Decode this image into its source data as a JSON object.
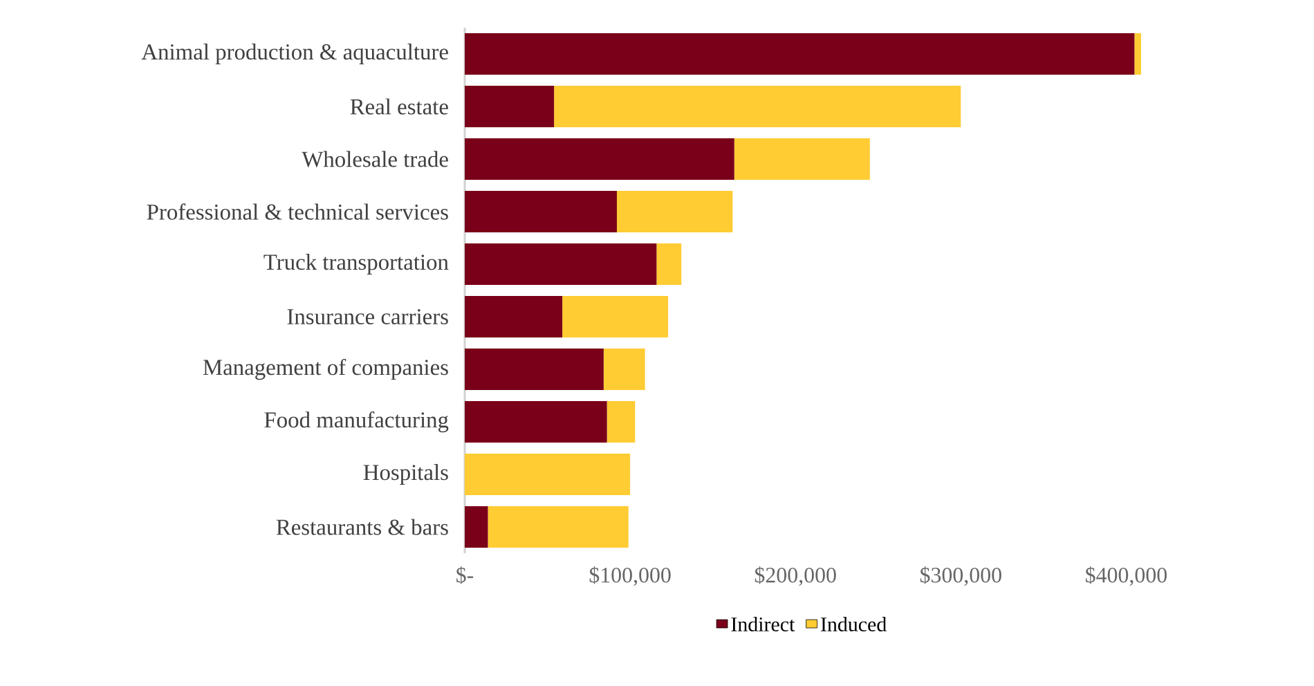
{
  "chart_data": {
    "type": "bar",
    "orientation": "horizontal",
    "stacked": true,
    "legend": "bottom",
    "categories": [
      "Animal production & aquaculture",
      "Real estate",
      "Wholesale trade",
      "Professional & technical services",
      "Truck transportation",
      "Insurance carriers",
      "Management of companies",
      "Food manufacturing",
      "Hospitals",
      "Restaurants & bars"
    ],
    "series": [
      {
        "name": "Indirect",
        "color": "#7a0019",
        "values": [
          405000,
          54000,
          163000,
          92000,
          116000,
          59000,
          84000,
          86000,
          0,
          14000
        ]
      },
      {
        "name": "Induced",
        "color": "#ffcc33",
        "values": [
          4000,
          246000,
          82000,
          70000,
          15000,
          64000,
          25000,
          17000,
          100000,
          85000
        ]
      }
    ],
    "xlim": [
      0,
      409000
    ],
    "xticks": [
      {
        "value": 0,
        "label": "$-"
      },
      {
        "value": 100000,
        "label": "$100,000"
      },
      {
        "value": 200000,
        "label": "$200,000"
      },
      {
        "value": 300000,
        "label": "$300,000"
      },
      {
        "value": 400000,
        "label": "$400,000"
      }
    ]
  }
}
